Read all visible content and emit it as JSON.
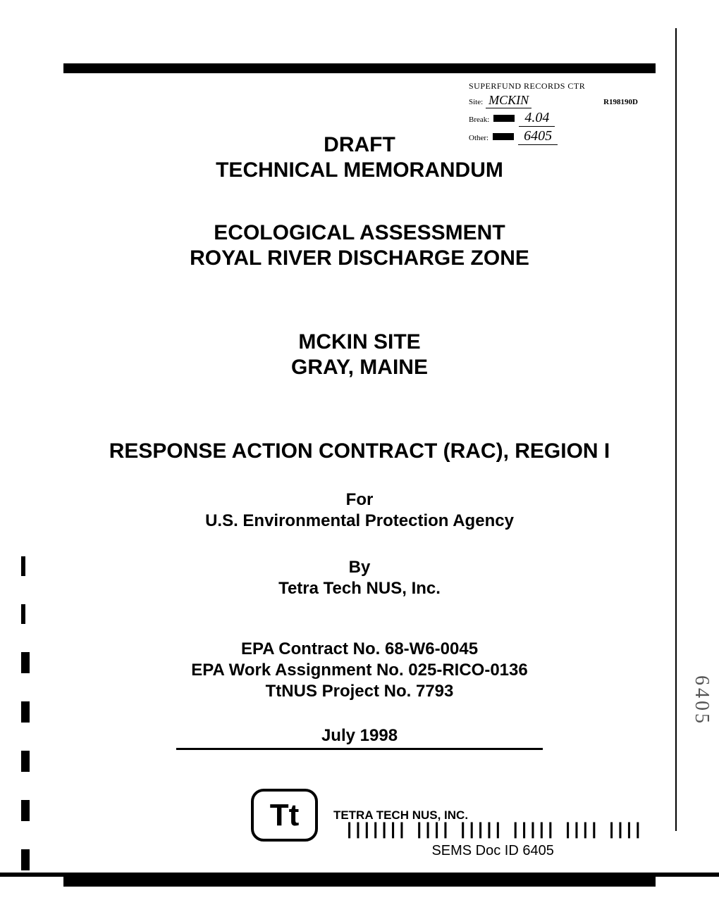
{
  "stamp": {
    "records_label": "SUPERFUND RECORDS CTR",
    "site_label": "Site:",
    "site_value": "MCKIN",
    "code": "R198190D",
    "break_label": "Break:",
    "break_value": "4.04",
    "other_label": "Other:",
    "other_value": "6405"
  },
  "titles": {
    "draft": "DRAFT",
    "memo": "TECHNICAL MEMORANDUM",
    "eco": "ECOLOGICAL ASSESSMENT",
    "zone": "ROYAL RIVER DISCHARGE ZONE",
    "site": "MCKIN SITE",
    "location": "GRAY, MAINE",
    "rac": "RESPONSE ACTION CONTRACT (RAC), REGION I"
  },
  "for_block": {
    "for": "For",
    "agency": "U.S. Environmental Protection Agency",
    "by": "By",
    "company": "Tetra Tech NUS, Inc."
  },
  "contract": {
    "line1": "EPA Contract No. 68-W6-0045",
    "line2": "EPA Work Assignment No. 025-RICO-0136",
    "line3": "TtNUS Project No. 7793"
  },
  "date": "July 1998",
  "logo": {
    "symbol": "Tt",
    "company": "TETRA TECH NUS, INC."
  },
  "footer": {
    "barcode": "||||||| |||| ||||| ||||| |||| ||||",
    "sems": "SEMS Doc ID 6405"
  },
  "margin_number": "6405",
  "colors": {
    "background": "#ffffff",
    "text": "#000000",
    "bar": "#000000"
  }
}
